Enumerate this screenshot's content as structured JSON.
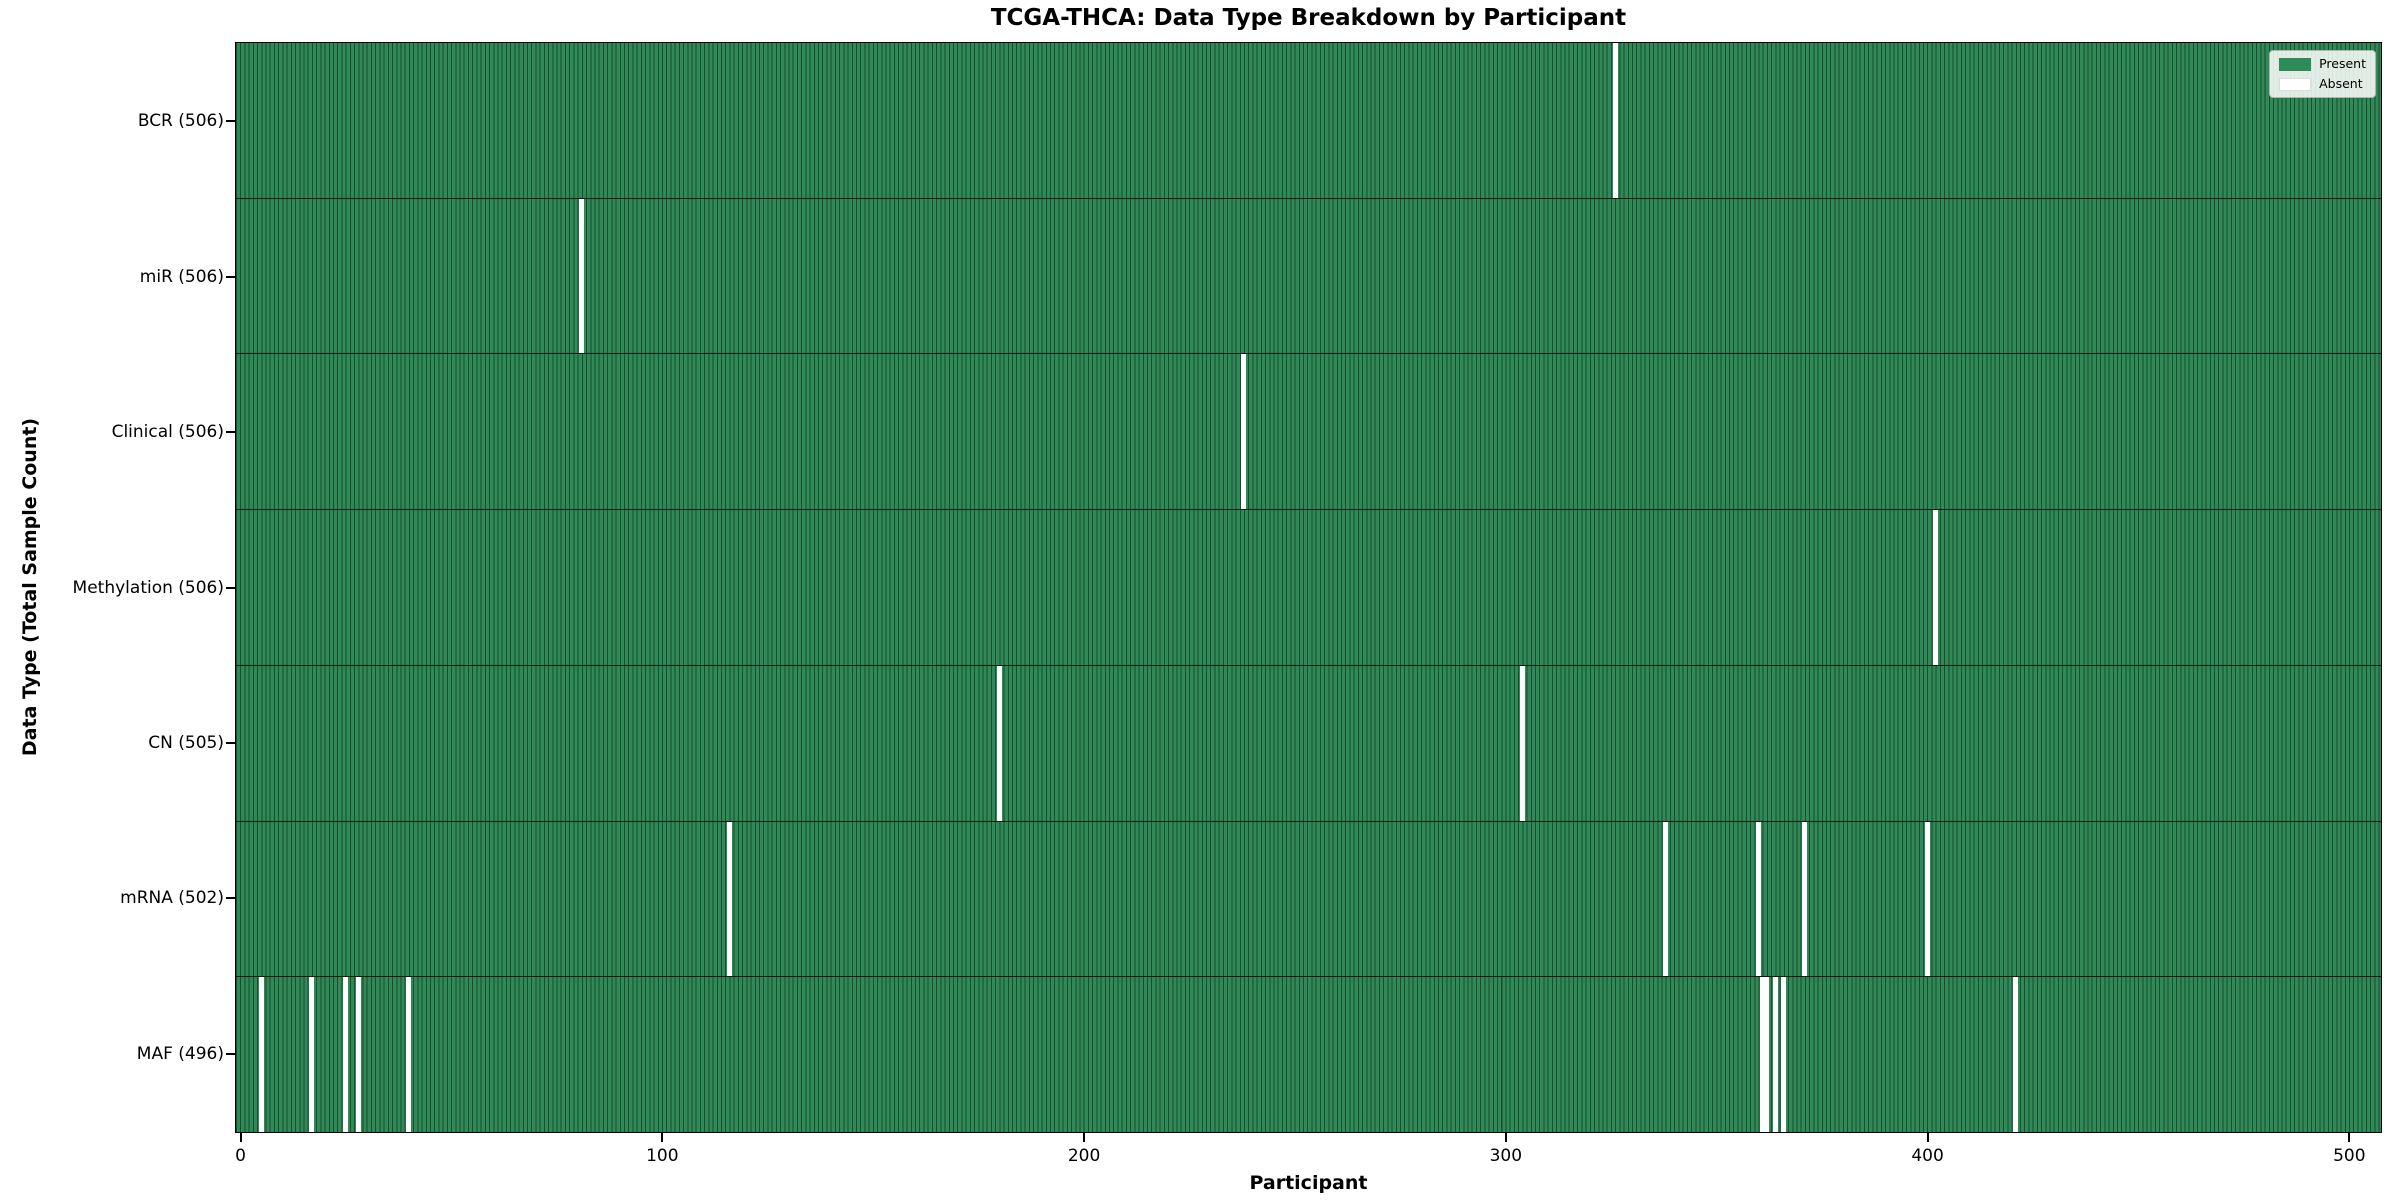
{
  "chart_data": {
    "type": "heatmap",
    "title": "TCGA-THCA: Data Type Breakdown by Participant",
    "xlabel": "Participant",
    "ylabel": "Data Type (Total Sample Count)",
    "x_ticks": [
      0,
      100,
      200,
      300,
      400,
      500
    ],
    "n_participants": 506,
    "grid": false,
    "legend_position": "upper right",
    "legend": [
      {
        "label": "Present",
        "color": "#2e8b57"
      },
      {
        "label": "Absent",
        "color": "#ffffff"
      }
    ],
    "colors": {
      "present": "#2e8b57",
      "absent": "#ffffff",
      "bar_edge": "#1d4a31",
      "frame": "#000000"
    },
    "rows": [
      {
        "label": "BCR (506)",
        "data_type": "BCR",
        "total_sample_count": 506,
        "absent_participants": [
          326
        ]
      },
      {
        "label": "miR (506)",
        "data_type": "miR",
        "total_sample_count": 506,
        "absent_participants": [
          81
        ]
      },
      {
        "label": "Clinical (506)",
        "data_type": "Clinical",
        "total_sample_count": 506,
        "absent_participants": [
          238
        ]
      },
      {
        "label": "Methylation (506)",
        "data_type": "Methylation",
        "total_sample_count": 506,
        "absent_participants": [
          402
        ]
      },
      {
        "label": "CN (505)",
        "data_type": "CN",
        "total_sample_count": 505,
        "absent_participants": [
          180,
          304
        ]
      },
      {
        "label": "mRNA (502)",
        "data_type": "mRNA",
        "total_sample_count": 502,
        "absent_participants": [
          116,
          338,
          360,
          371,
          400
        ]
      },
      {
        "label": "MAF (496)",
        "data_type": "MAF",
        "total_sample_count": 496,
        "absent_participants": [
          5,
          17,
          25,
          28,
          40,
          361,
          362,
          364,
          366,
          421
        ]
      }
    ]
  }
}
